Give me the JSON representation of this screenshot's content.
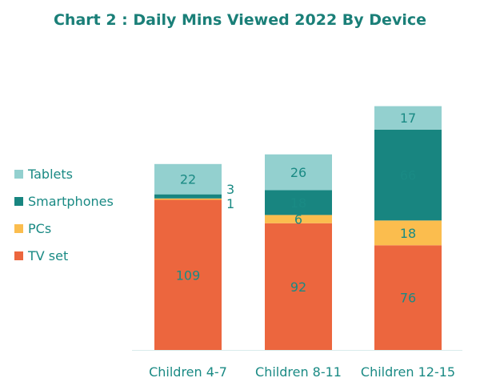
{
  "chart_data": {
    "type": "bar",
    "stacked": true,
    "title": "Chart 2 : Daily Mins Viewed 2022 By Device",
    "xlabel": "",
    "ylabel": "",
    "ylim": [
      0,
      180
    ],
    "grid": false,
    "legend_position": "left",
    "categories": [
      "Children 4-7",
      "Children 8-11",
      "Children 12-15"
    ],
    "series": [
      {
        "name": "TV set",
        "color": "#ec663e",
        "values": [
          109,
          92,
          76
        ]
      },
      {
        "name": "PCs",
        "color": "#fbbd4e",
        "values": [
          1,
          6,
          18
        ]
      },
      {
        "name": "Smartphones",
        "color": "#188580",
        "values": [
          3,
          18,
          66
        ]
      },
      {
        "name": "Tablets",
        "color": "#93d0cf",
        "values": [
          22,
          26,
          17
        ]
      }
    ],
    "label_color": "#1a8a84"
  }
}
